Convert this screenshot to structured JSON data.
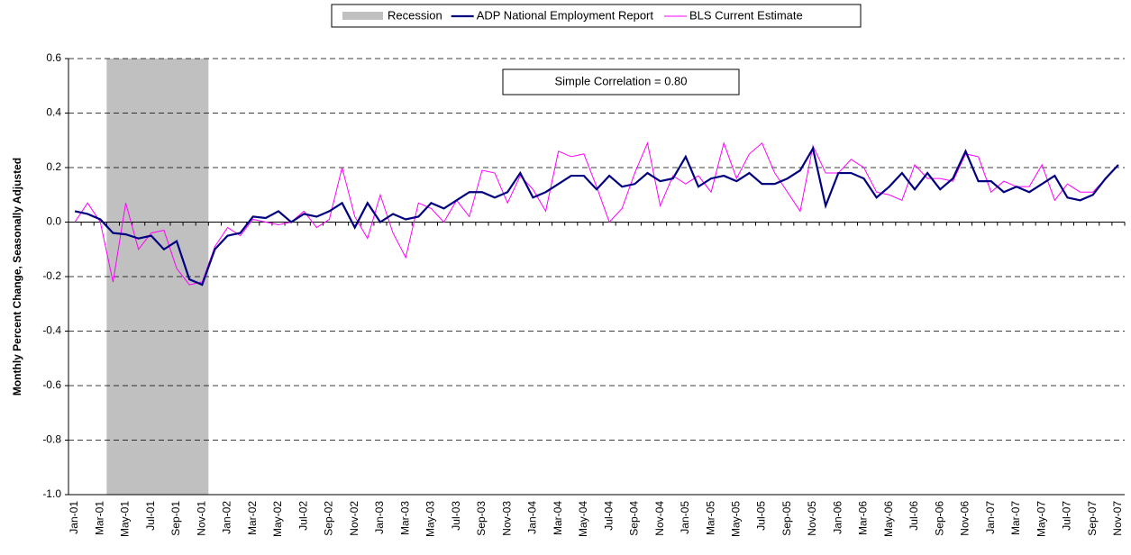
{
  "chart_data": {
    "type": "line",
    "y_label": "Monthly Percent Change, Seasonally Adjusted",
    "annotation": "Simple Correlation = 0.80",
    "categories": [
      "Jan-01",
      null,
      "Mar-01",
      null,
      "May-01",
      null,
      "Jul-01",
      null,
      "Sep-01",
      null,
      "Nov-01",
      null,
      "Jan-02",
      null,
      "Mar-02",
      null,
      "May-02",
      null,
      "Jul-02",
      null,
      "Sep-02",
      null,
      "Nov-02",
      null,
      "Jan-03",
      null,
      "Mar-03",
      null,
      "May-03",
      null,
      "Jul-03",
      null,
      "Sep-03",
      null,
      "Nov-03",
      null,
      "Jan-04",
      null,
      "Mar-04",
      null,
      "May-04",
      null,
      "Jul-04",
      null,
      "Sep-04",
      null,
      "Nov-04",
      null,
      "Jan-05",
      null,
      "Mar-05",
      null,
      "May-05",
      null,
      "Jul-05",
      null,
      "Sep-05",
      null,
      "Nov-05",
      null,
      "Jan-06",
      null,
      "Mar-06",
      null,
      "May-06",
      null,
      "Jul-06",
      null,
      "Sep-06",
      null,
      "Nov-06",
      null,
      "Jan-07",
      null,
      "Mar-07",
      null,
      "May-07",
      null,
      "Jul-07",
      null,
      "Sep-07",
      null,
      "Nov-07"
    ],
    "shaded_range": {
      "name": "Recession",
      "color": "#c0c0c0",
      "from": "Mar-01",
      "to": "Nov-01"
    },
    "series": [
      {
        "name": "ADP National Employment Report",
        "color": "#000080",
        "values": [
          0.04,
          0.03,
          0.01,
          -0.04,
          -0.045,
          -0.06,
          -0.05,
          -0.1,
          -0.07,
          -0.21,
          -0.23,
          -0.1,
          -0.05,
          -0.04,
          0.02,
          0.015,
          0.04,
          0.0,
          0.03,
          0.02,
          0.04,
          0.07,
          -0.02,
          0.07,
          0.0,
          0.03,
          0.01,
          0.02,
          0.07,
          0.05,
          0.08,
          0.11,
          0.11,
          0.09,
          0.11,
          0.18,
          0.09,
          0.11,
          0.14,
          0.17,
          0.17,
          0.12,
          0.17,
          0.13,
          0.14,
          0.18,
          0.15,
          0.16,
          0.24,
          0.13,
          0.16,
          0.17,
          0.15,
          0.18,
          0.14,
          0.14,
          0.16,
          0.19,
          0.27,
          0.06,
          0.18,
          0.18,
          0.16,
          0.09,
          0.13,
          0.18,
          0.12,
          0.18,
          0.12,
          0.16,
          0.26,
          0.15,
          0.15,
          0.11,
          0.13,
          0.11,
          0.14,
          0.17,
          0.09,
          0.08,
          0.1,
          0.16,
          0.21
        ]
      },
      {
        "name": "BLS Current Estimate",
        "color": "#ff00ff",
        "values": [
          0.0,
          0.07,
          0.0,
          -0.22,
          0.07,
          -0.1,
          -0.04,
          -0.03,
          -0.17,
          -0.23,
          -0.22,
          -0.09,
          -0.02,
          -0.05,
          0.01,
          0.0,
          -0.01,
          0.0,
          0.04,
          -0.02,
          0.01,
          0.2,
          0.02,
          -0.06,
          0.1,
          -0.04,
          -0.13,
          0.07,
          0.05,
          0.0,
          0.08,
          0.02,
          0.19,
          0.18,
          0.07,
          0.17,
          0.12,
          0.04,
          0.26,
          0.24,
          0.25,
          0.13,
          0.0,
          0.05,
          0.18,
          0.29,
          0.06,
          0.17,
          0.14,
          0.17,
          0.11,
          0.29,
          0.16,
          0.25,
          0.29,
          0.18,
          0.11,
          0.04,
          0.28,
          0.18,
          0.18,
          0.23,
          0.2,
          0.11,
          0.1,
          0.08,
          0.21,
          0.16,
          0.16,
          0.15,
          0.25,
          0.24,
          0.11,
          0.15,
          0.13,
          0.13,
          0.21,
          0.08,
          0.14,
          0.11,
          0.11,
          0.16,
          0.21
        ]
      }
    ],
    "ylim": [
      -1,
      0.6
    ],
    "yticks": [
      0.6,
      0.4,
      0.2,
      {
        "value": 0,
        "label": "0.0"
      },
      -0.2,
      -0.4,
      -0.6,
      -0.8,
      {
        "value": -1,
        "label": "-1.0"
      }
    ],
    "grid": true
  }
}
